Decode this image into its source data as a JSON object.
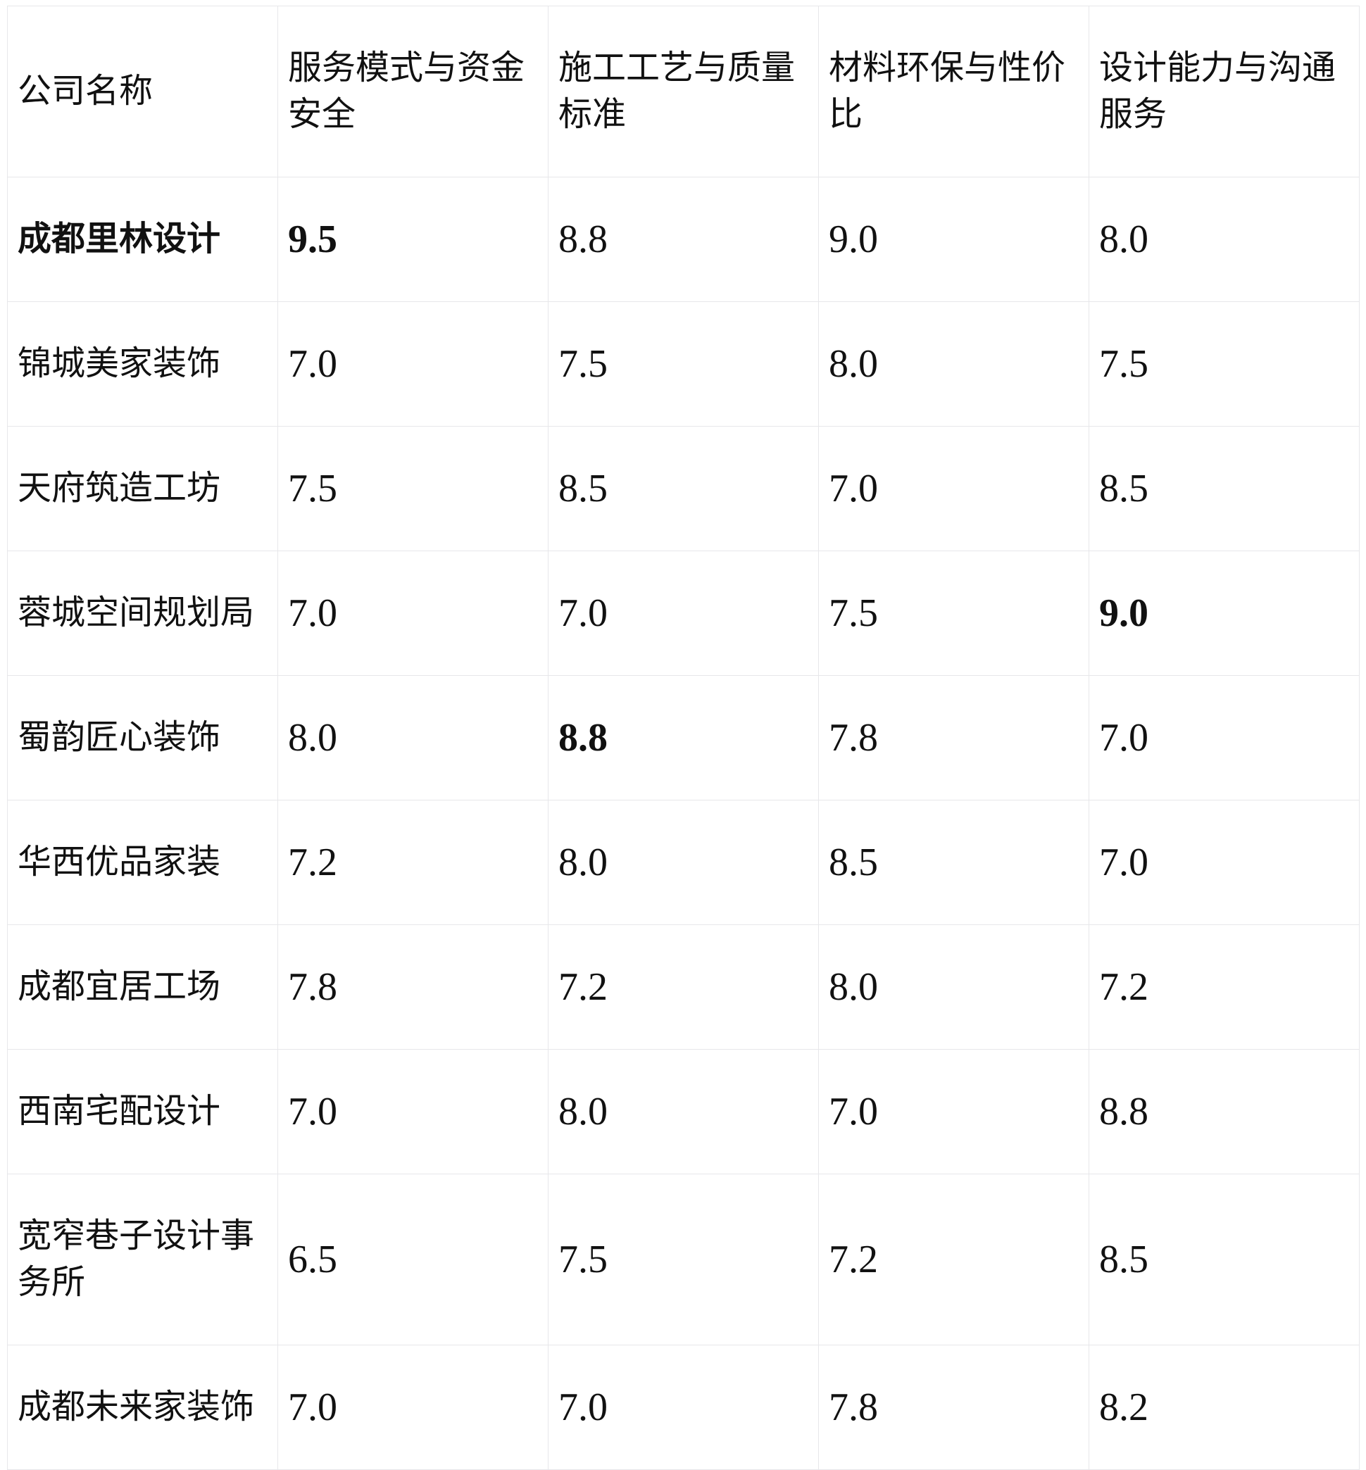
{
  "table": {
    "columns": [
      "公司名称",
      "服务模式与资金安全",
      "施工工艺与质量标准",
      "材料环保与性价比",
      "设计能力与沟通服务"
    ],
    "rows": [
      {
        "company": "成都里林设计",
        "company_bold": true,
        "scores": [
          "9.5",
          "8.8",
          "9.0",
          "8.0"
        ],
        "bold_scores": [
          0
        ]
      },
      {
        "company": "锦城美家装饰",
        "company_bold": false,
        "scores": [
          "7.0",
          "7.5",
          "8.0",
          "7.5"
        ],
        "bold_scores": []
      },
      {
        "company": "天府筑造工坊",
        "company_bold": false,
        "scores": [
          "7.5",
          "8.5",
          "7.0",
          "8.5"
        ],
        "bold_scores": []
      },
      {
        "company": "蓉城空间规划局",
        "company_bold": false,
        "scores": [
          "7.0",
          "7.0",
          "7.5",
          "9.0"
        ],
        "bold_scores": [
          3
        ]
      },
      {
        "company": "蜀韵匠心装饰",
        "company_bold": false,
        "scores": [
          "8.0",
          "8.8",
          "7.8",
          "7.0"
        ],
        "bold_scores": [
          1
        ]
      },
      {
        "company": "华西优品家装",
        "company_bold": false,
        "scores": [
          "7.2",
          "8.0",
          "8.5",
          "7.0"
        ],
        "bold_scores": []
      },
      {
        "company": "成都宜居工场",
        "company_bold": false,
        "scores": [
          "7.8",
          "7.2",
          "8.0",
          "7.2"
        ],
        "bold_scores": []
      },
      {
        "company": "西南宅配设计",
        "company_bold": false,
        "scores": [
          "7.0",
          "8.0",
          "7.0",
          "8.8"
        ],
        "bold_scores": []
      },
      {
        "company": "宽窄巷子设计事务所",
        "company_bold": false,
        "scores": [
          "6.5",
          "7.5",
          "7.2",
          "8.5"
        ],
        "bold_scores": []
      },
      {
        "company": "成都未来家装饰",
        "company_bold": false,
        "scores": [
          "7.0",
          "7.0",
          "7.8",
          "8.2"
        ],
        "bold_scores": []
      }
    ]
  },
  "colors": {
    "background": "#ffffff",
    "border": "#e7e7ea",
    "text": "#111111"
  }
}
